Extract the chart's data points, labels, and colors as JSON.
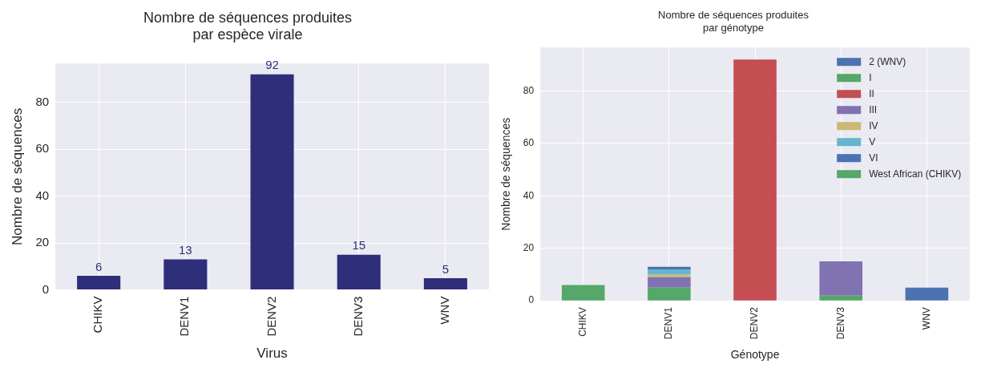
{
  "chart_data": [
    {
      "type": "bar",
      "title": "Nombre de séquences produites\npar espèce virale",
      "xlabel": "Virus",
      "ylabel": "Nombre de séquences",
      "categories": [
        "CHIKV",
        "DENV1",
        "DENV2",
        "DENV3",
        "WNV"
      ],
      "values": [
        6,
        13,
        92,
        15,
        5
      ],
      "color": "#2e2e7a",
      "ylim": [
        0,
        96.6
      ],
      "yticks": [
        0,
        20,
        40,
        60,
        80
      ],
      "grid": true,
      "data_labels": true,
      "legend": false
    },
    {
      "type": "bar",
      "title": "Nombre de séquences produites\npar génotype",
      "xlabel": "Génotype",
      "ylabel": "Nombre de séquences",
      "categories": [
        "CHIKV",
        "DENV1",
        "DENV2",
        "DENV3",
        "WNV"
      ],
      "stacked": true,
      "ylim": [
        0,
        96.6
      ],
      "yticks": [
        0,
        20,
        40,
        60,
        80
      ],
      "grid": true,
      "legend": "top right",
      "series": [
        {
          "name": "2 (WNV)",
          "color": "#4c72b0",
          "values": [
            null,
            null,
            null,
            null,
            5
          ]
        },
        {
          "name": "I",
          "color": "#55a868",
          "values": [
            null,
            5,
            null,
            2,
            null
          ]
        },
        {
          "name": "II",
          "color": "#c44e52",
          "values": [
            null,
            null,
            92,
            null,
            null
          ]
        },
        {
          "name": "III",
          "color": "#8172b2",
          "values": [
            null,
            4,
            null,
            13,
            null
          ]
        },
        {
          "name": "IV",
          "color": "#ccb974",
          "values": [
            null,
            1,
            null,
            null,
            null
          ]
        },
        {
          "name": "V",
          "color": "#64b5cd",
          "values": [
            null,
            2,
            null,
            null,
            null
          ]
        },
        {
          "name": "VI",
          "color": "#4c72b0",
          "values": [
            null,
            1,
            null,
            null,
            null
          ]
        },
        {
          "name": "West African (CHIKV)",
          "color": "#55a868",
          "values": [
            6,
            null,
            null,
            null,
            null
          ]
        }
      ]
    }
  ]
}
